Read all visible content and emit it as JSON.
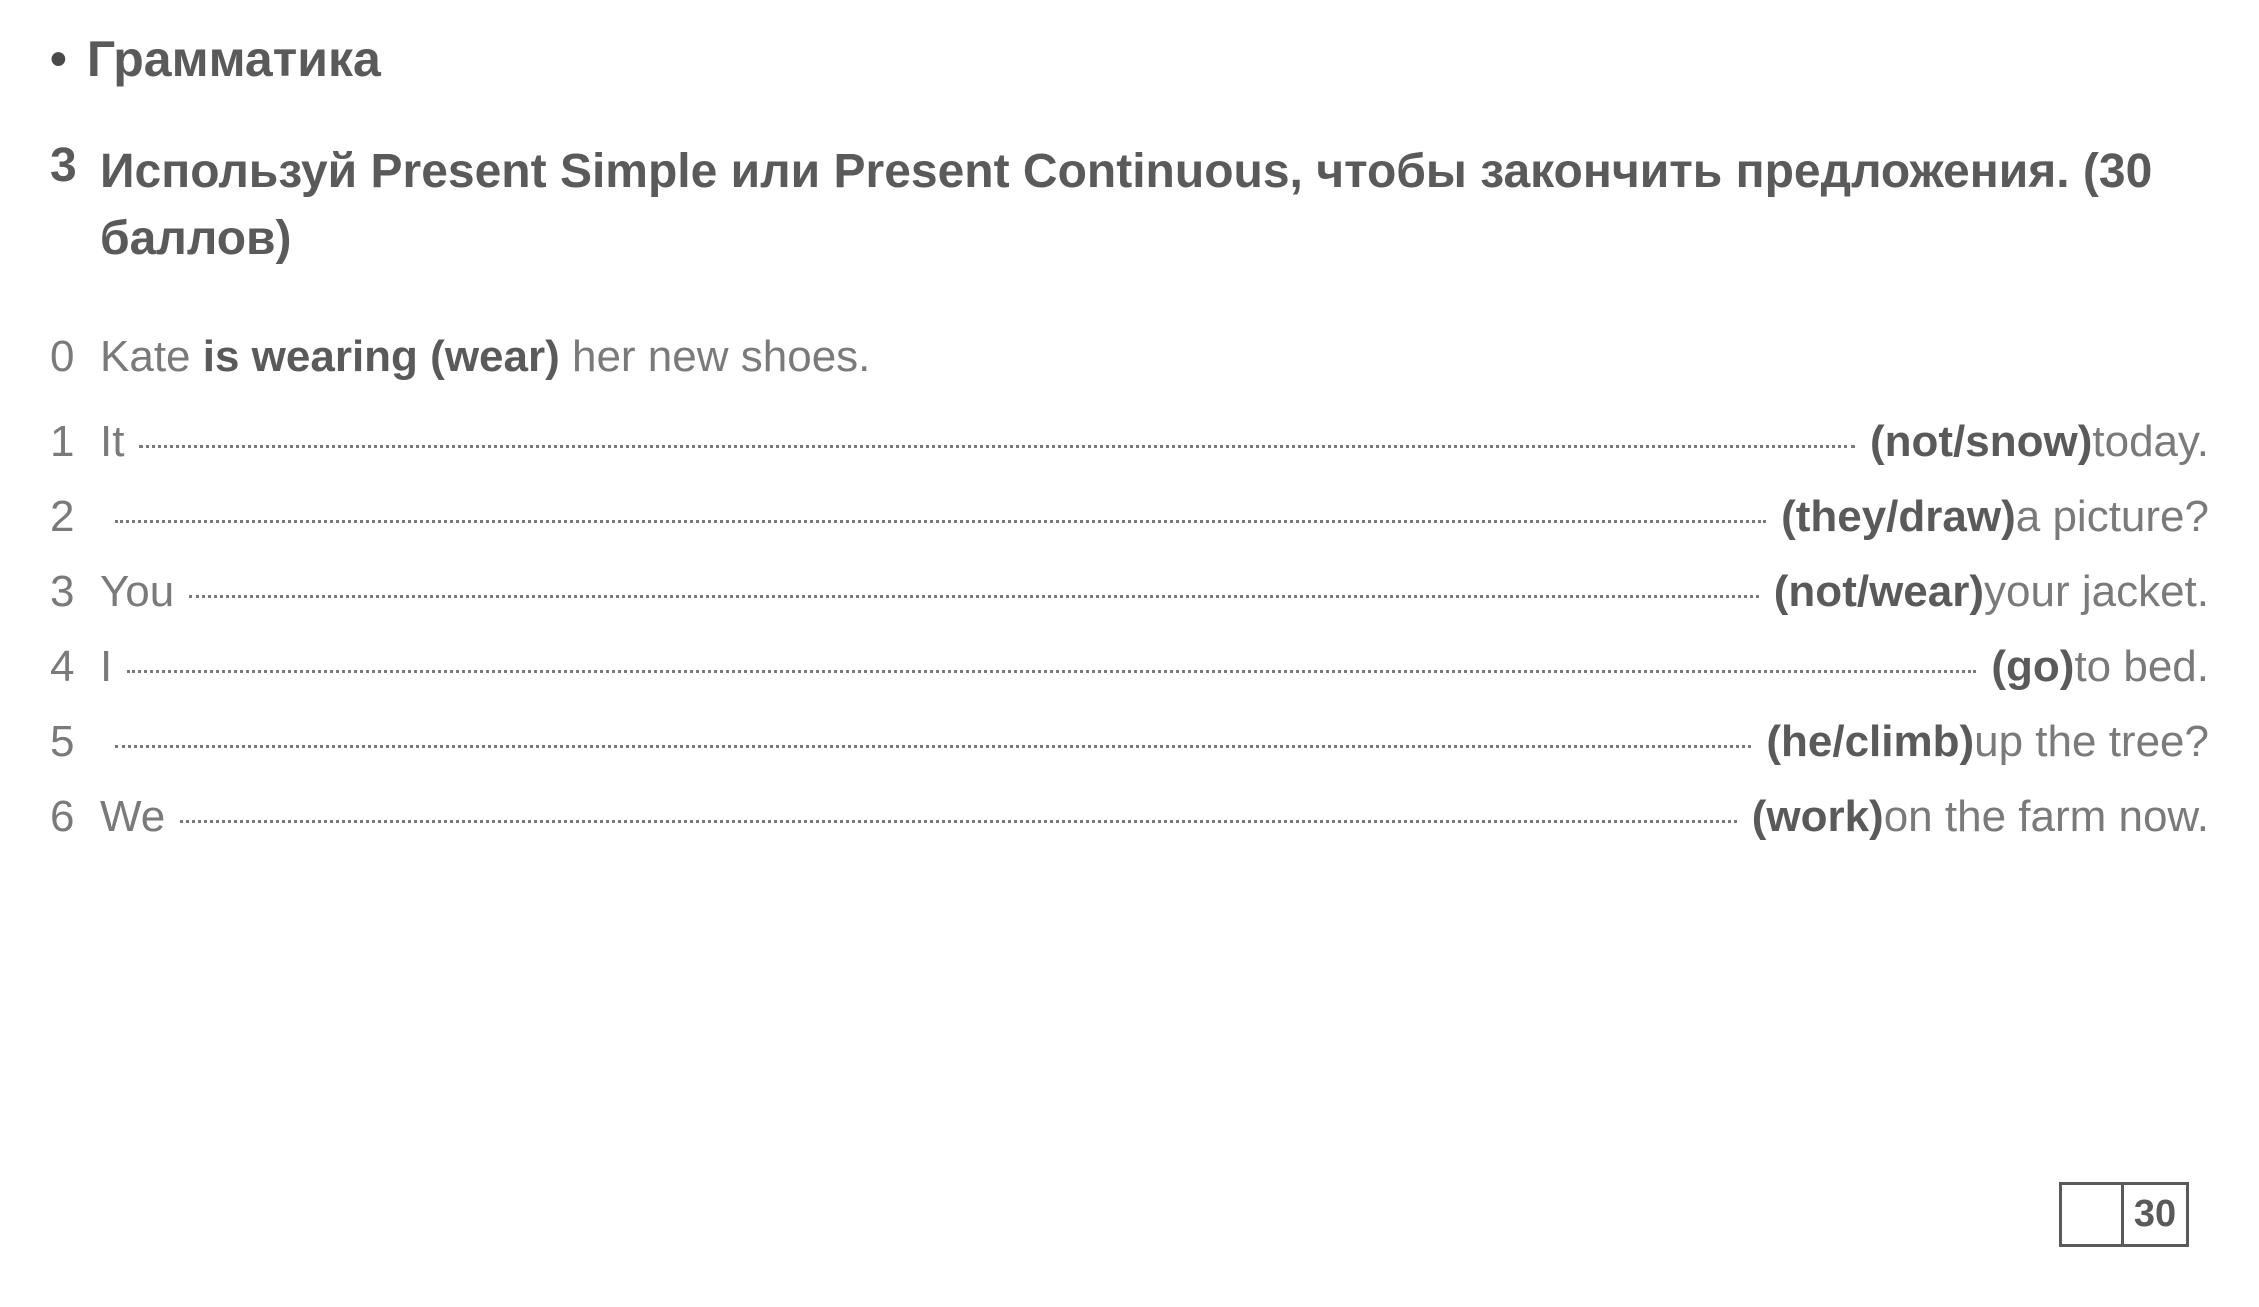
{
  "header": {
    "bullet": "•",
    "title": "Грамматика"
  },
  "instruction": {
    "number": "3",
    "text": "Используй Present Simple или Present Continuous, чтобы закончить предложения. (30 баллов)"
  },
  "example": {
    "number": "0",
    "name": "Kate ",
    "answer": "is wearing (wear)",
    "rest": " her new shoes."
  },
  "questions": [
    {
      "number": "1",
      "prefix": "It ",
      "hint": "(not/snow)",
      "suffix": " today."
    },
    {
      "number": "2",
      "prefix": "",
      "hint": "(they/draw)",
      "suffix": " a picture?"
    },
    {
      "number": "3",
      "prefix": "You ",
      "hint": "(not/wear)",
      "suffix": " your jacket."
    },
    {
      "number": "4",
      "prefix": "I ",
      "hint": "(go)",
      "suffix": " to bed."
    },
    {
      "number": "5",
      "prefix": "",
      "hint": "(he/climb)",
      "suffix": " up the tree?"
    },
    {
      "number": "6",
      "prefix": "We ",
      "hint": "(work)",
      "suffix": " on the farm now."
    }
  ],
  "score": {
    "max": "30"
  },
  "styling": {
    "background_color": "#ffffff",
    "heading_color": "#5a5a5a",
    "text_color": "#7a7a7a",
    "bold_color": "#5a5a5a",
    "heading_fontsize": 50,
    "text_fontsize": 44,
    "dotted_border_color": "#7a7a7a",
    "score_border_color": "#5a5a5a"
  }
}
